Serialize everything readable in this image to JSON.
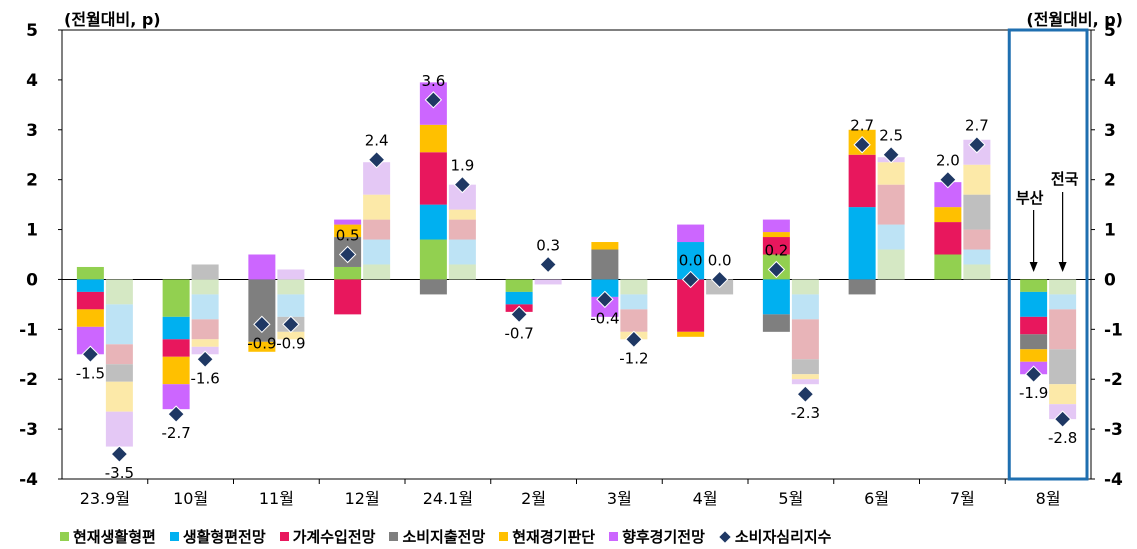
{
  "unit_label_left": "(전월대비, p)",
  "unit_label_right": "(전월대비, p)",
  "chart_data": {
    "type": "bar",
    "subtype": "stacked-bar-with-diamond-markers",
    "ylim": [
      -4,
      5
    ],
    "yticks": [
      -4,
      -3,
      -2,
      -1,
      0,
      1,
      2,
      3,
      4,
      5
    ],
    "categories": [
      "23.9월",
      "10월",
      "11월",
      "12월",
      "24.1월",
      "2월",
      "3월",
      "4월",
      "5월",
      "6월",
      "7월",
      "8월"
    ],
    "pair_labels": [
      "부산",
      "전국"
    ],
    "component_series": [
      {
        "name": "현재생활형편",
        "color": "#92d050",
        "light_color": "#d5e8c4"
      },
      {
        "name": "생활형편전망",
        "color": "#00b0f0",
        "light_color": "#bde3f5"
      },
      {
        "name": "가계수입전망",
        "color": "#e8175d",
        "light_color": "#e8b4b8"
      },
      {
        "name": "소비지출전망",
        "color": "#7f7f7f",
        "light_color": "#bfbfbf"
      },
      {
        "name": "현재경기판단",
        "color": "#ffc000",
        "light_color": "#fce9a8"
      },
      {
        "name": "향후경기전망",
        "color": "#cc66ff",
        "light_color": "#e4c8f5"
      }
    ],
    "busan_components": [
      [
        0.25,
        -0.25,
        -0.35,
        0,
        -0.35,
        -0.55
      ],
      [
        -0.75,
        -0.45,
        -0.35,
        0,
        -0.55,
        -0.5
      ],
      [
        0,
        0,
        0,
        -1.25,
        -0.2,
        0.5
      ],
      [
        0.25,
        0,
        -0.7,
        0.6,
        0.25,
        0.1
      ],
      [
        0.8,
        0.7,
        1.05,
        -0.3,
        0.55,
        0.85
      ],
      [
        -0.25,
        -0.25,
        -0.15,
        0,
        0,
        0
      ],
      [
        0,
        -0.35,
        0,
        0.6,
        0.15,
        -0.4
      ],
      [
        0,
        0.75,
        -1.05,
        0,
        -0.1,
        0.35
      ],
      [
        0.5,
        -0.7,
        0.35,
        -0.35,
        0.1,
        0.25
      ],
      [
        0,
        1.45,
        1.05,
        -0.3,
        0.5,
        0
      ],
      [
        0.5,
        0,
        0.65,
        0,
        0.3,
        0.5
      ],
      [
        -0.25,
        -0.5,
        -0.35,
        -0.3,
        -0.25,
        -0.25
      ]
    ],
    "national_components": [
      [
        -0.5,
        -0.8,
        -0.4,
        -0.35,
        -0.6,
        -0.7
      ],
      [
        -0.3,
        -0.5,
        -0.4,
        0.3,
        -0.15,
        -0.15
      ],
      [
        -0.3,
        -0.45,
        0,
        -0.3,
        -0.15,
        0.2
      ],
      [
        0.3,
        0.5,
        0.4,
        0,
        0.5,
        0.65
      ],
      [
        0.3,
        0.5,
        0.4,
        0,
        0.2,
        0.5
      ],
      [
        0,
        0,
        0,
        0,
        0,
        -0.1
      ],
      [
        -0.3,
        -0.3,
        -0.45,
        0,
        -0.15,
        0
      ],
      [
        0,
        0,
        0,
        -0.3,
        0,
        0
      ],
      [
        -0.3,
        -0.5,
        -0.8,
        -0.3,
        -0.1,
        -0.1
      ],
      [
        0.6,
        0.5,
        0.8,
        0,
        0.45,
        0.1
      ],
      [
        0.3,
        0.3,
        0.4,
        0.7,
        0.6,
        0.5
      ],
      [
        -0.3,
        -0.3,
        -0.8,
        -0.7,
        -0.4,
        -0.3
      ]
    ],
    "diamond_series": {
      "name": "소비자심리지수",
      "color": "#1f3864",
      "busan_values": [
        -1.5,
        -2.7,
        -0.9,
        0.5,
        3.6,
        -0.7,
        -0.4,
        0.0,
        0.2,
        2.7,
        2.0,
        -1.9
      ],
      "national_values": [
        -3.5,
        -1.6,
        -0.9,
        2.4,
        1.9,
        0.3,
        -1.2,
        0.0,
        -2.3,
        2.5,
        2.7,
        -2.8
      ],
      "busan_labels": [
        "-1.5",
        "-2.7",
        "-0.9",
        "0.5",
        "3.6",
        "-0.7",
        "-0.4",
        "0.0",
        "0.2",
        "2.7",
        "2.0",
        "-1.9"
      ],
      "national_labels": [
        "-3.5",
        "-1.6",
        "-0.9",
        "2.4",
        "1.9",
        "0.3",
        "-1.2",
        "0.0",
        "-2.3",
        "2.5",
        "2.7",
        "-2.8"
      ]
    },
    "highlight_category": "8월",
    "highlight_color": "#1f6fb0",
    "legend": [
      "현재생활형편",
      "생활형편전망",
      "가계수입전망",
      "소비지출전망",
      "현재경기판단",
      "향후경기전망",
      "소비자심리지수"
    ],
    "legend_position": "bottom"
  }
}
